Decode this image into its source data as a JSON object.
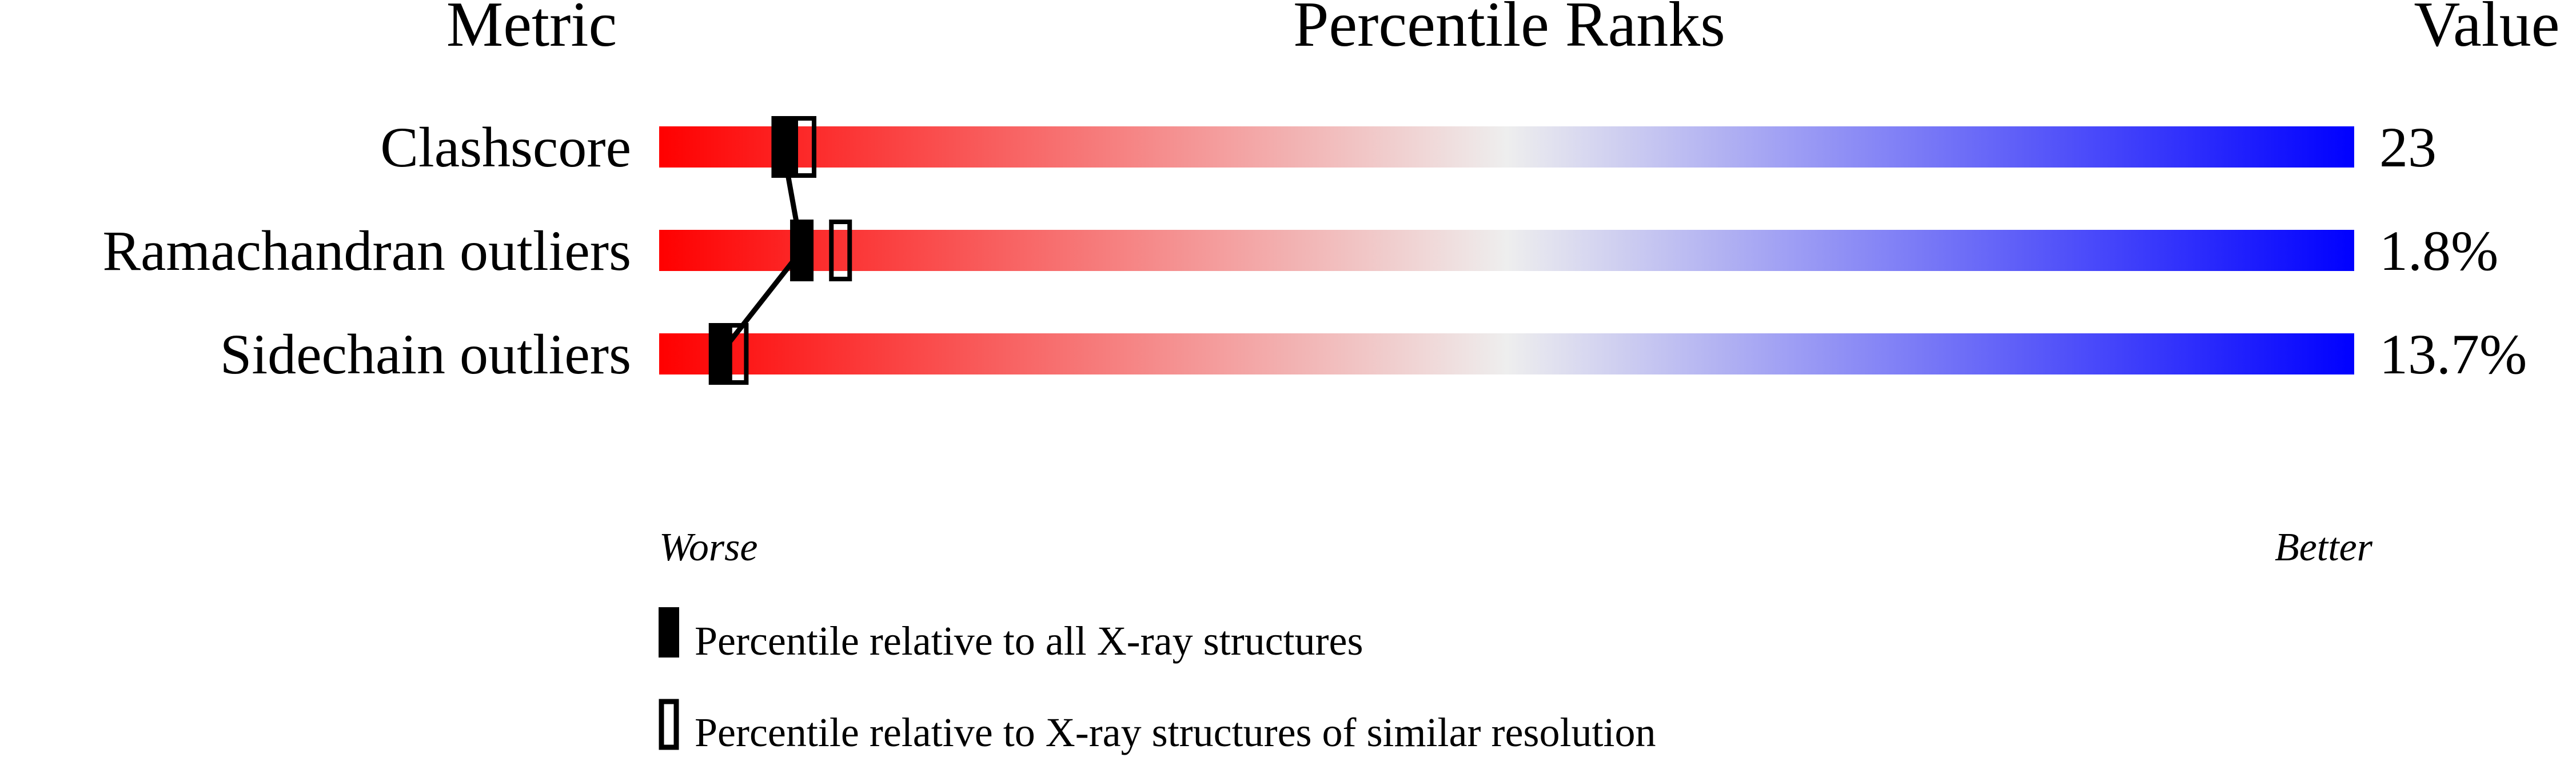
{
  "chart_data": {
    "type": "percentile-bar",
    "headers": {
      "metric": "Metric",
      "ranks": "Percentile Ranks",
      "value": "Value"
    },
    "xlim": [
      0,
      100
    ],
    "axis_labels": {
      "left": "Worse",
      "right": "Better"
    },
    "rows": [
      {
        "metric": "Clashscore",
        "value": "23",
        "percentile_all": 7.3,
        "percentile_similar": 8.6
      },
      {
        "metric": "Ramachandran outliers",
        "value": "1.8%",
        "percentile_all": 8.4,
        "percentile_similar": 10.7
      },
      {
        "metric": "Sidechain outliers",
        "value": "13.7%",
        "percentile_all": 3.6,
        "percentile_similar": 4.6
      }
    ],
    "legend": [
      {
        "marker": "filled",
        "label": "Percentile relative to all X-ray structures"
      },
      {
        "marker": "open",
        "label": "Percentile relative to X-ray structures of similar resolution"
      }
    ],
    "colors": {
      "worse": "#ff0000",
      "middle": "#eeeeee",
      "better": "#0000ff",
      "marker": "#000000"
    }
  }
}
